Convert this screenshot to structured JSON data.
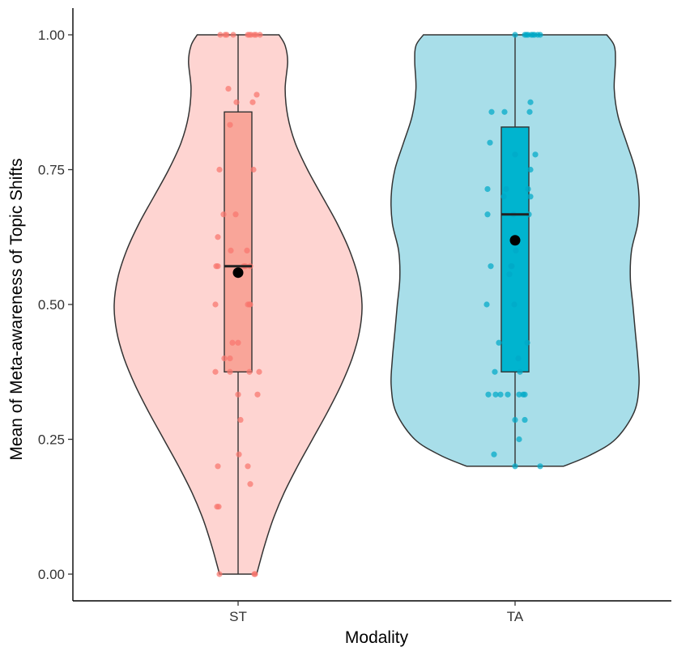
{
  "chart_data": {
    "type": "violin",
    "xlabel": "Modality",
    "ylabel": "Mean of Meta-awareness of Topic Shifts",
    "ylim": [
      0,
      1
    ],
    "yticks": [
      "0.00",
      "0.25",
      "0.50",
      "0.75",
      "1.00"
    ],
    "categories": [
      "ST",
      "TA"
    ],
    "grid": false,
    "legend": "none",
    "groups": [
      {
        "category": "ST",
        "fill": "#fed4d1",
        "box_fill": "#f9a599",
        "point_color": "#f8766d",
        "violin_halfwidth": [
          {
            "y": 0.0,
            "w": 0.15
          },
          {
            "y": 0.05,
            "w": 0.21
          },
          {
            "y": 0.1,
            "w": 0.28
          },
          {
            "y": 0.15,
            "w": 0.37
          },
          {
            "y": 0.2,
            "w": 0.48
          },
          {
            "y": 0.25,
            "w": 0.6
          },
          {
            "y": 0.3,
            "w": 0.72
          },
          {
            "y": 0.35,
            "w": 0.83
          },
          {
            "y": 0.4,
            "w": 0.92
          },
          {
            "y": 0.45,
            "w": 0.98
          },
          {
            "y": 0.5,
            "w": 1.0
          },
          {
            "y": 0.55,
            "w": 0.97
          },
          {
            "y": 0.6,
            "w": 0.9
          },
          {
            "y": 0.65,
            "w": 0.8
          },
          {
            "y": 0.7,
            "w": 0.68
          },
          {
            "y": 0.75,
            "w": 0.56
          },
          {
            "y": 0.8,
            "w": 0.46
          },
          {
            "y": 0.85,
            "w": 0.4
          },
          {
            "y": 0.9,
            "w": 0.38
          },
          {
            "y": 0.95,
            "w": 0.4
          },
          {
            "y": 0.98,
            "w": 0.38
          },
          {
            "y": 1.0,
            "w": 0.33
          }
        ],
        "box": {
          "q1": 0.375,
          "median": 0.571,
          "q3": 0.857,
          "whisker_low": 0.0,
          "whisker_high": 1.0,
          "mean": 0.559
        },
        "points": [
          {
            "dx": -0.22,
            "y": 1.0
          },
          {
            "dx": -0.16,
            "y": 1.0
          },
          {
            "dx": -0.14,
            "y": 1.0
          },
          {
            "dx": -0.06,
            "y": 1.0
          },
          {
            "dx": 0.12,
            "y": 1.0
          },
          {
            "dx": 0.14,
            "y": 1.0
          },
          {
            "dx": 0.16,
            "y": 1.0
          },
          {
            "dx": 0.2,
            "y": 1.0
          },
          {
            "dx": 0.22,
            "y": 1.0
          },
          {
            "dx": 0.27,
            "y": 1.0
          },
          {
            "dx": -0.12,
            "y": 0.9
          },
          {
            "dx": 0.23,
            "y": 0.889
          },
          {
            "dx": -0.02,
            "y": 0.875
          },
          {
            "dx": 0.18,
            "y": 0.875
          },
          {
            "dx": -0.1,
            "y": 0.833
          },
          {
            "dx": -0.23,
            "y": 0.75
          },
          {
            "dx": 0.19,
            "y": 0.75
          },
          {
            "dx": -0.18,
            "y": 0.667
          },
          {
            "dx": -0.03,
            "y": 0.667
          },
          {
            "dx": -0.25,
            "y": 0.625
          },
          {
            "dx": -0.09,
            "y": 0.6
          },
          {
            "dx": 0.11,
            "y": 0.6
          },
          {
            "dx": -0.27,
            "y": 0.571
          },
          {
            "dx": -0.25,
            "y": 0.571
          },
          {
            "dx": 0.07,
            "y": 0.571
          },
          {
            "dx": 0.09,
            "y": 0.571
          },
          {
            "dx": 0.15,
            "y": 0.571
          },
          {
            "dx": -0.28,
            "y": 0.5
          },
          {
            "dx": 0.12,
            "y": 0.5
          },
          {
            "dx": 0.14,
            "y": 0.5
          },
          {
            "dx": 0.15,
            "y": 0.5
          },
          {
            "dx": -0.07,
            "y": 0.429
          },
          {
            "dx": 0.0,
            "y": 0.429
          },
          {
            "dx": -0.17,
            "y": 0.4
          },
          {
            "dx": -0.1,
            "y": 0.4
          },
          {
            "dx": -0.28,
            "y": 0.375
          },
          {
            "dx": -0.1,
            "y": 0.375
          },
          {
            "dx": 0.14,
            "y": 0.375
          },
          {
            "dx": 0.26,
            "y": 0.375
          },
          {
            "dx": 0.0,
            "y": 0.333
          },
          {
            "dx": 0.24,
            "y": 0.333
          },
          {
            "dx": 0.03,
            "y": 0.286
          },
          {
            "dx": 0.01,
            "y": 0.222
          },
          {
            "dx": -0.25,
            "y": 0.2
          },
          {
            "dx": 0.12,
            "y": 0.2
          },
          {
            "dx": 0.15,
            "y": 0.167
          },
          {
            "dx": -0.26,
            "y": 0.125
          },
          {
            "dx": -0.24,
            "y": 0.125
          },
          {
            "dx": -0.23,
            "y": 0.0
          },
          {
            "dx": 0.2,
            "y": 0.0
          },
          {
            "dx": 0.21,
            "y": 0.0
          }
        ]
      },
      {
        "category": "TA",
        "fill": "#a8dee9",
        "box_fill": "#00b4cf",
        "point_color": "#00a9c8",
        "violin_halfwidth": [
          {
            "y": 0.2,
            "w": 0.39
          },
          {
            "y": 0.22,
            "w": 0.6
          },
          {
            "y": 0.25,
            "w": 0.81
          },
          {
            "y": 0.3,
            "w": 0.96
          },
          {
            "y": 0.35,
            "w": 1.0
          },
          {
            "y": 0.4,
            "w": 0.99
          },
          {
            "y": 0.45,
            "w": 0.97
          },
          {
            "y": 0.5,
            "w": 0.95
          },
          {
            "y": 0.55,
            "w": 0.93
          },
          {
            "y": 0.6,
            "w": 0.94
          },
          {
            "y": 0.65,
            "w": 0.99
          },
          {
            "y": 0.7,
            "w": 1.0
          },
          {
            "y": 0.75,
            "w": 0.97
          },
          {
            "y": 0.8,
            "w": 0.9
          },
          {
            "y": 0.85,
            "w": 0.83
          },
          {
            "y": 0.9,
            "w": 0.8
          },
          {
            "y": 0.95,
            "w": 0.81
          },
          {
            "y": 0.98,
            "w": 0.8
          },
          {
            "y": 1.0,
            "w": 0.74
          }
        ],
        "box": {
          "q1": 0.375,
          "median": 0.667,
          "q3": 0.829,
          "whisker_low": 0.2,
          "whisker_high": 1.0,
          "mean": 0.619
        },
        "points": [
          {
            "dx": 0.0,
            "y": 1.0
          },
          {
            "dx": 0.12,
            "y": 1.0
          },
          {
            "dx": 0.14,
            "y": 1.0
          },
          {
            "dx": 0.16,
            "y": 1.0
          },
          {
            "dx": 0.2,
            "y": 1.0
          },
          {
            "dx": 0.22,
            "y": 1.0
          },
          {
            "dx": 0.24,
            "y": 1.0
          },
          {
            "dx": 0.28,
            "y": 1.0
          },
          {
            "dx": 0.31,
            "y": 1.0
          },
          {
            "dx": 0.19,
            "y": 0.875
          },
          {
            "dx": -0.29,
            "y": 0.857
          },
          {
            "dx": -0.13,
            "y": 0.857
          },
          {
            "dx": 0.18,
            "y": 0.857
          },
          {
            "dx": -0.31,
            "y": 0.8
          },
          {
            "dx": 0.0,
            "y": 0.778
          },
          {
            "dx": 0.25,
            "y": 0.778
          },
          {
            "dx": 0.19,
            "y": 0.75
          },
          {
            "dx": -0.34,
            "y": 0.714
          },
          {
            "dx": -0.11,
            "y": 0.714
          },
          {
            "dx": 0.16,
            "y": 0.714
          },
          {
            "dx": -0.14,
            "y": 0.7
          },
          {
            "dx": 0.19,
            "y": 0.7
          },
          {
            "dx": -0.34,
            "y": 0.667
          },
          {
            "dx": 0.17,
            "y": 0.667
          },
          {
            "dx": -0.02,
            "y": 0.667
          },
          {
            "dx": 0.01,
            "y": 0.6
          },
          {
            "dx": -0.3,
            "y": 0.571
          },
          {
            "dx": -0.05,
            "y": 0.571
          },
          {
            "dx": -0.04,
            "y": 0.571
          },
          {
            "dx": -0.07,
            "y": 0.556
          },
          {
            "dx": -0.35,
            "y": 0.5
          },
          {
            "dx": -0.01,
            "y": 0.5
          },
          {
            "dx": -0.2,
            "y": 0.429
          },
          {
            "dx": 0.15,
            "y": 0.429
          },
          {
            "dx": 0.04,
            "y": 0.4
          },
          {
            "dx": -0.25,
            "y": 0.375
          },
          {
            "dx": 0.06,
            "y": 0.375
          },
          {
            "dx": -0.33,
            "y": 0.333
          },
          {
            "dx": -0.24,
            "y": 0.333
          },
          {
            "dx": -0.18,
            "y": 0.333
          },
          {
            "dx": -0.09,
            "y": 0.333
          },
          {
            "dx": 0.05,
            "y": 0.333
          },
          {
            "dx": 0.1,
            "y": 0.333
          },
          {
            "dx": 0.12,
            "y": 0.333
          },
          {
            "dx": 0.0,
            "y": 0.286
          },
          {
            "dx": 0.12,
            "y": 0.286
          },
          {
            "dx": 0.05,
            "y": 0.25
          },
          {
            "dx": -0.26,
            "y": 0.222
          },
          {
            "dx": 0.0,
            "y": 0.2
          },
          {
            "dx": 0.31,
            "y": 0.2
          }
        ]
      }
    ]
  }
}
